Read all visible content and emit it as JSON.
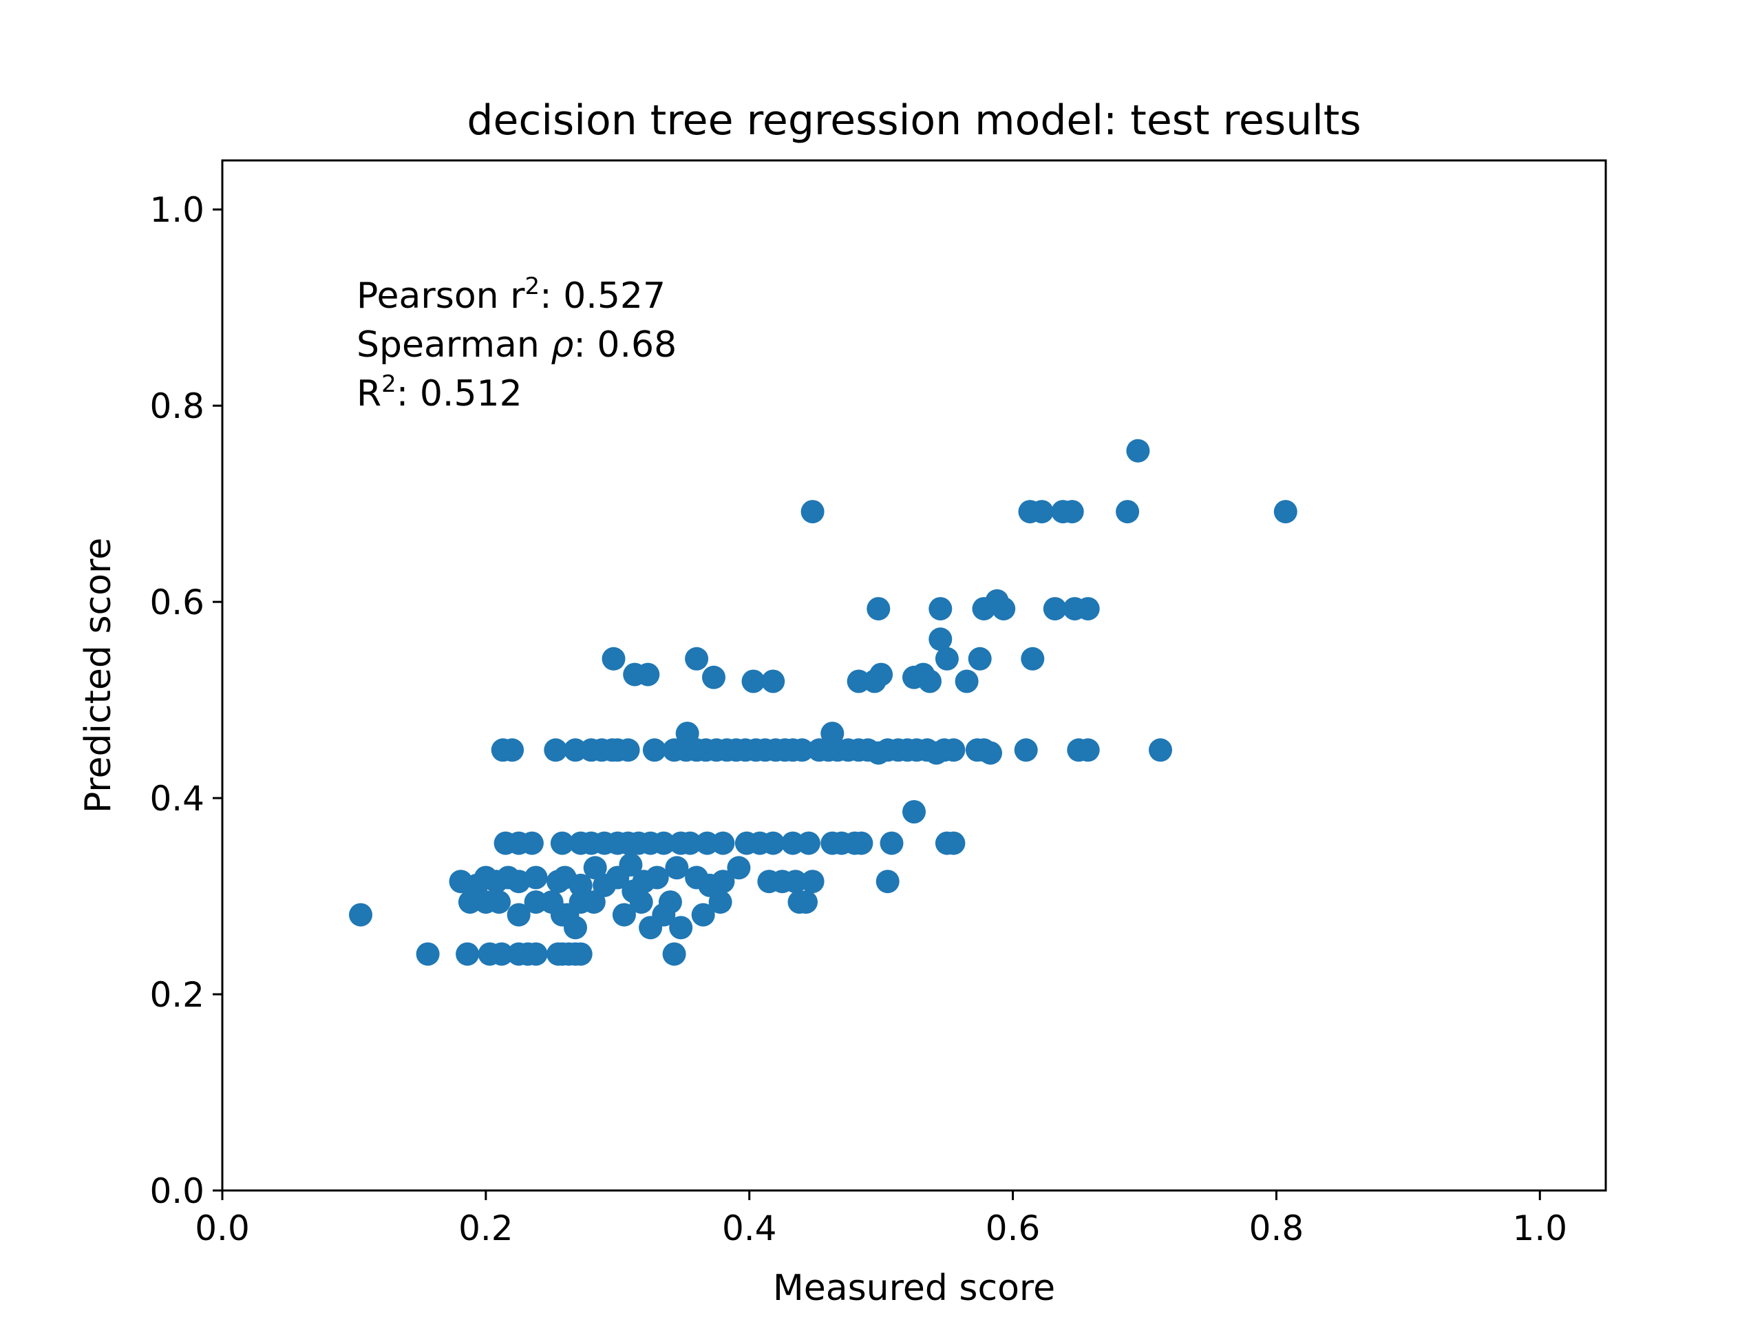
{
  "chart_data": {
    "type": "scatter",
    "title": "decision tree regression model: test results",
    "xlabel": "Measured score",
    "ylabel": "Predicted score",
    "xlim": [
      0.0,
      1.05
    ],
    "ylim": [
      0.0,
      1.05
    ],
    "xticks": [
      "0.0",
      "0.2",
      "0.4",
      "0.6",
      "0.8",
      "1.0"
    ],
    "yticks": [
      "0.0",
      "0.2",
      "0.4",
      "0.6",
      "0.8",
      "1.0"
    ],
    "grid": false,
    "marker_color": "#1f77b4",
    "annotation": {
      "pearson_label": "Pearson r",
      "pearson_sup": "2",
      "pearson_value": ": 0.527",
      "spearman_label": "Spearman ",
      "spearman_symbol": "ρ",
      "spearman_value": ": 0.68",
      "r2_label": "R",
      "r2_sup": "2",
      "r2_value": ": 0.512"
    },
    "series": [
      {
        "points": [
          [
            0.105,
            0.281
          ],
          [
            0.156,
            0.241
          ],
          [
            0.186,
            0.241
          ],
          [
            0.203,
            0.241
          ],
          [
            0.212,
            0.241
          ],
          [
            0.225,
            0.241
          ],
          [
            0.232,
            0.241
          ],
          [
            0.238,
            0.241
          ],
          [
            0.255,
            0.241
          ],
          [
            0.258,
            0.241
          ],
          [
            0.263,
            0.241
          ],
          [
            0.268,
            0.241
          ],
          [
            0.272,
            0.241
          ],
          [
            0.343,
            0.241
          ],
          [
            0.181,
            0.315
          ],
          [
            0.193,
            0.311
          ],
          [
            0.2,
            0.319
          ],
          [
            0.208,
            0.315
          ],
          [
            0.217,
            0.319
          ],
          [
            0.225,
            0.315
          ],
          [
            0.238,
            0.319
          ],
          [
            0.255,
            0.315
          ],
          [
            0.26,
            0.319
          ],
          [
            0.272,
            0.311
          ],
          [
            0.283,
            0.329
          ],
          [
            0.3,
            0.319
          ],
          [
            0.31,
            0.332
          ],
          [
            0.32,
            0.315
          ],
          [
            0.33,
            0.319
          ],
          [
            0.345,
            0.329
          ],
          [
            0.36,
            0.319
          ],
          [
            0.37,
            0.311
          ],
          [
            0.38,
            0.315
          ],
          [
            0.392,
            0.329
          ],
          [
            0.188,
            0.294
          ],
          [
            0.2,
            0.294
          ],
          [
            0.21,
            0.294
          ],
          [
            0.225,
            0.281
          ],
          [
            0.238,
            0.294
          ],
          [
            0.25,
            0.294
          ],
          [
            0.262,
            0.281
          ],
          [
            0.268,
            0.268
          ],
          [
            0.272,
            0.294
          ],
          [
            0.282,
            0.294
          ],
          [
            0.305,
            0.281
          ],
          [
            0.318,
            0.294
          ],
          [
            0.325,
            0.268
          ],
          [
            0.335,
            0.281
          ],
          [
            0.34,
            0.294
          ],
          [
            0.348,
            0.268
          ],
          [
            0.365,
            0.281
          ],
          [
            0.378,
            0.294
          ],
          [
            0.258,
            0.281
          ],
          [
            0.29,
            0.311
          ],
          [
            0.312,
            0.305
          ],
          [
            0.215,
            0.354
          ],
          [
            0.225,
            0.354
          ],
          [
            0.235,
            0.354
          ],
          [
            0.258,
            0.354
          ],
          [
            0.272,
            0.354
          ],
          [
            0.28,
            0.354
          ],
          [
            0.29,
            0.354
          ],
          [
            0.3,
            0.354
          ],
          [
            0.308,
            0.354
          ],
          [
            0.316,
            0.354
          ],
          [
            0.325,
            0.354
          ],
          [
            0.335,
            0.354
          ],
          [
            0.348,
            0.354
          ],
          [
            0.355,
            0.354
          ],
          [
            0.368,
            0.354
          ],
          [
            0.38,
            0.354
          ],
          [
            0.398,
            0.354
          ],
          [
            0.408,
            0.354
          ],
          [
            0.418,
            0.354
          ],
          [
            0.433,
            0.354
          ],
          [
            0.445,
            0.354
          ],
          [
            0.463,
            0.354
          ],
          [
            0.47,
            0.354
          ],
          [
            0.48,
            0.354
          ],
          [
            0.485,
            0.354
          ],
          [
            0.508,
            0.354
          ],
          [
            0.55,
            0.354
          ],
          [
            0.555,
            0.354
          ],
          [
            0.525,
            0.386
          ],
          [
            0.505,
            0.315
          ],
          [
            0.415,
            0.315
          ],
          [
            0.425,
            0.315
          ],
          [
            0.435,
            0.315
          ],
          [
            0.448,
            0.315
          ],
          [
            0.438,
            0.294
          ],
          [
            0.443,
            0.294
          ],
          [
            0.213,
            0.449
          ],
          [
            0.22,
            0.449
          ],
          [
            0.253,
            0.449
          ],
          [
            0.268,
            0.449
          ],
          [
            0.28,
            0.449
          ],
          [
            0.288,
            0.449
          ],
          [
            0.296,
            0.449
          ],
          [
            0.3,
            0.449
          ],
          [
            0.308,
            0.449
          ],
          [
            0.328,
            0.449
          ],
          [
            0.343,
            0.449
          ],
          [
            0.352,
            0.449
          ],
          [
            0.36,
            0.449
          ],
          [
            0.367,
            0.449
          ],
          [
            0.375,
            0.449
          ],
          [
            0.383,
            0.449
          ],
          [
            0.39,
            0.449
          ],
          [
            0.397,
            0.449
          ],
          [
            0.405,
            0.449
          ],
          [
            0.412,
            0.449
          ],
          [
            0.42,
            0.449
          ],
          [
            0.427,
            0.449
          ],
          [
            0.433,
            0.449
          ],
          [
            0.44,
            0.449
          ],
          [
            0.453,
            0.449
          ],
          [
            0.46,
            0.449
          ],
          [
            0.467,
            0.449
          ],
          [
            0.475,
            0.449
          ],
          [
            0.483,
            0.449
          ],
          [
            0.49,
            0.449
          ],
          [
            0.498,
            0.446
          ],
          [
            0.505,
            0.449
          ],
          [
            0.513,
            0.449
          ],
          [
            0.52,
            0.449
          ],
          [
            0.527,
            0.449
          ],
          [
            0.535,
            0.449
          ],
          [
            0.542,
            0.446
          ],
          [
            0.548,
            0.449
          ],
          [
            0.555,
            0.449
          ],
          [
            0.573,
            0.449
          ],
          [
            0.578,
            0.449
          ],
          [
            0.583,
            0.446
          ],
          [
            0.61,
            0.449
          ],
          [
            0.65,
            0.449
          ],
          [
            0.657,
            0.449
          ],
          [
            0.712,
            0.449
          ],
          [
            0.353,
            0.466
          ],
          [
            0.463,
            0.466
          ],
          [
            0.297,
            0.542
          ],
          [
            0.313,
            0.526
          ],
          [
            0.323,
            0.526
          ],
          [
            0.36,
            0.542
          ],
          [
            0.373,
            0.523
          ],
          [
            0.403,
            0.519
          ],
          [
            0.418,
            0.519
          ],
          [
            0.483,
            0.519
          ],
          [
            0.495,
            0.519
          ],
          [
            0.5,
            0.526
          ],
          [
            0.525,
            0.523
          ],
          [
            0.532,
            0.526
          ],
          [
            0.537,
            0.519
          ],
          [
            0.545,
            0.562
          ],
          [
            0.55,
            0.542
          ],
          [
            0.565,
            0.519
          ],
          [
            0.575,
            0.542
          ],
          [
            0.615,
            0.542
          ],
          [
            0.498,
            0.593
          ],
          [
            0.545,
            0.593
          ],
          [
            0.578,
            0.593
          ],
          [
            0.588,
            0.601
          ],
          [
            0.593,
            0.593
          ],
          [
            0.632,
            0.593
          ],
          [
            0.647,
            0.593
          ],
          [
            0.657,
            0.593
          ],
          [
            0.448,
            0.692
          ],
          [
            0.613,
            0.692
          ],
          [
            0.622,
            0.692
          ],
          [
            0.638,
            0.692
          ],
          [
            0.645,
            0.692
          ],
          [
            0.687,
            0.692
          ],
          [
            0.807,
            0.692
          ],
          [
            0.695,
            0.754
          ]
        ]
      }
    ]
  }
}
